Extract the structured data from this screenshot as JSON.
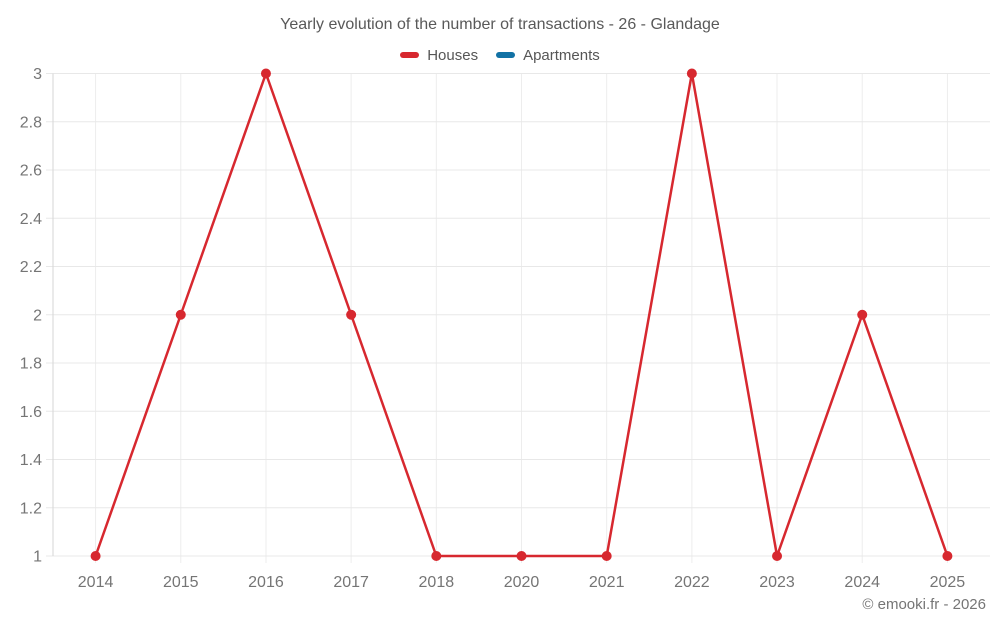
{
  "title": "Yearly evolution of the number of transactions - 26 - Glandage",
  "watermark": "© emooki.fr - 2026",
  "colors": {
    "background": "#ffffff",
    "houses": "#d7282f",
    "apartments": "#1272a5",
    "grid_horizontal": "#e8e8e8",
    "grid_vertical": "#ededed",
    "axis": "#d6d6d6",
    "tick_label": "#757575",
    "title_text": "#595959",
    "legend_text": "#565656",
    "watermark_text": "#757575"
  },
  "legend": [
    {
      "label": "Houses",
      "color": "#d7282f"
    },
    {
      "label": "Apartments",
      "color": "#1272a5"
    }
  ],
  "chart_data": {
    "type": "line",
    "title": "Yearly evolution of the number of transactions - 26 - Glandage",
    "categories": [
      "2014",
      "2015",
      "2016",
      "2017",
      "2018",
      "2020",
      "2021",
      "2022",
      "2023",
      "2024",
      "2025"
    ],
    "series": [
      {
        "name": "Houses",
        "color": "#d7282f",
        "values": [
          1,
          2,
          3,
          2,
          1,
          1,
          1,
          3,
          1,
          2,
          1
        ]
      },
      {
        "name": "Apartments",
        "color": "#1272a5",
        "values": []
      }
    ],
    "xlabel": "",
    "ylabel": "",
    "ylim": [
      1,
      3
    ],
    "ytick_step": 0.2,
    "ytick_labels": [
      "1",
      "1.2",
      "1.4",
      "1.6",
      "1.8",
      "2",
      "2.2",
      "2.4",
      "2.6",
      "2.8",
      "3"
    ],
    "grid": true,
    "legend_position": "top",
    "marker": "circle"
  }
}
